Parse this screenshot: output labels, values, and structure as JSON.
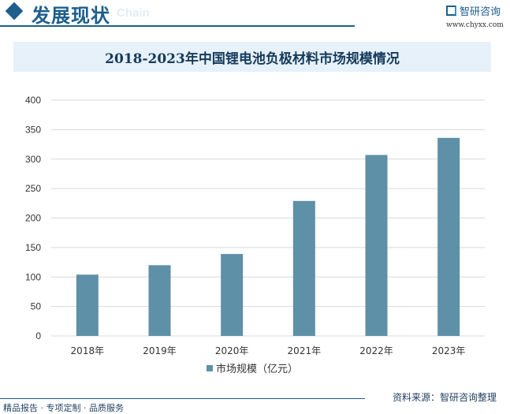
{
  "header": {
    "title": "发展现状",
    "subtitle": "Chain",
    "logo": "智研咨询",
    "url": "www.chyxx.com"
  },
  "footer": {
    "left": "精品报告 · 专项定制 · 品质服务",
    "source": "资料来源：智研咨询整理"
  },
  "colors": {
    "bar": "#5e90a8",
    "brand": "#1d5e8c"
  },
  "chart_data": {
    "type": "bar",
    "title": "2018-2023年中国锂电池负极材料市场规模情况",
    "categories": [
      "2018年",
      "2019年",
      "2020年",
      "2021年",
      "2022年",
      "2023年"
    ],
    "series": [
      {
        "name": "市场规模（亿元）",
        "values": [
          104,
          120,
          139,
          229,
          307,
          336
        ]
      }
    ],
    "yticks": [
      0,
      50,
      100,
      150,
      200,
      250,
      300,
      350,
      400
    ],
    "ylim": [
      0,
      400
    ],
    "grid": true,
    "legend": "bottom"
  }
}
